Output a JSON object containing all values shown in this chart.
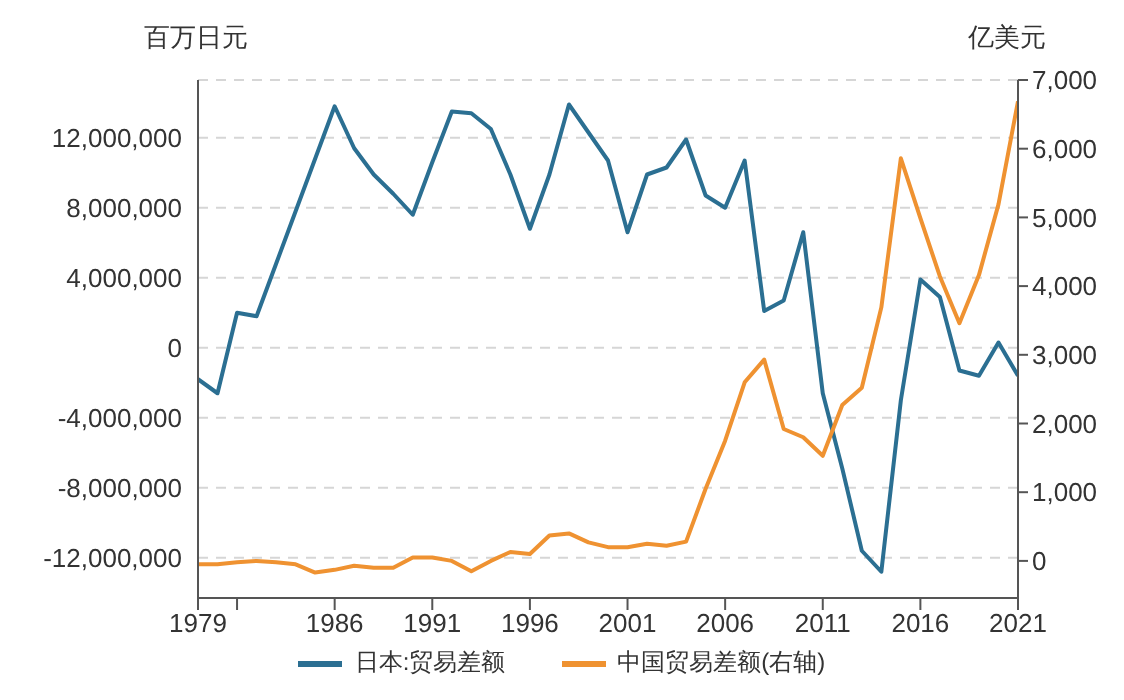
{
  "chart_data": {
    "type": "line",
    "ylabel": "百万日元",
    "y2label": "亿美元",
    "x": [
      1979,
      1980,
      1981,
      1982,
      1983,
      1984,
      1985,
      1986,
      1987,
      1988,
      1989,
      1990,
      1991,
      1992,
      1993,
      1994,
      1995,
      1996,
      1997,
      1998,
      1999,
      2000,
      2001,
      2002,
      2003,
      2004,
      2005,
      2006,
      2007,
      2008,
      2009,
      2010,
      2011,
      2012,
      2013,
      2014,
      2015,
      2016,
      2017,
      2018,
      2019,
      2020,
      2021
    ],
    "series": [
      {
        "name": "日本:贸易差额",
        "color": "#2b6f92",
        "values": [
          -1800000,
          -2600000,
          2000000,
          1800000,
          4800000,
          7800000,
          10800000,
          13800000,
          11400000,
          9900000,
          8800000,
          7600000,
          10600000,
          13500000,
          13400000,
          12500000,
          9900000,
          6800000,
          9900000,
          13900000,
          12300000,
          10700000,
          6600000,
          9900000,
          10300000,
          11900000,
          8700000,
          8000000,
          10700000,
          2100000,
          2700000,
          6600000,
          -2600000,
          -6900000,
          -11600000,
          -12800000,
          -3000000,
          3900000,
          2900000,
          -1300000,
          -1600000,
          300000,
          -1600000
        ]
      },
      {
        "name": "中国贸易差额(右轴)",
        "color": "#ef9231",
        "axis": "y2",
        "values": [
          -50,
          -50,
          -20,
          0,
          -20,
          -50,
          -170,
          -130,
          -70,
          -100,
          -100,
          50,
          50,
          0,
          -150,
          0,
          130,
          100,
          370,
          400,
          270,
          200,
          200,
          250,
          220,
          280,
          1050,
          1750,
          2600,
          2930,
          1920,
          1800,
          1530,
          2270,
          2520,
          3690,
          5860,
          4990,
          4140,
          3460,
          4160,
          5190,
          6690
        ]
      }
    ],
    "xlim": [
      1979,
      2021
    ],
    "xticks": [
      1979,
      {
        "value": 1981,
        "label": null
      },
      1986,
      1991,
      1996,
      2001,
      2006,
      2011,
      2016,
      2021
    ],
    "ylim": [
      -14300000,
      15300000
    ],
    "yticks": [
      {
        "value": -12000000,
        "label": "-12,000,000"
      },
      {
        "value": -8000000,
        "label": "-8,000,000"
      },
      {
        "value": -4000000,
        "label": "-4,000,000"
      },
      0,
      {
        "value": 4000000,
        "label": "4,000,000"
      },
      {
        "value": 8000000,
        "label": "8,000,000"
      },
      {
        "value": 12000000,
        "label": "12,000,000"
      }
    ],
    "y2lim": [
      -540,
      7000
    ],
    "y2ticks": [
      0,
      {
        "value": 1000,
        "label": "1,000"
      },
      {
        "value": 2000,
        "label": "2,000"
      },
      {
        "value": 3000,
        "label": "3,000"
      },
      {
        "value": 4000,
        "label": "4,000"
      },
      {
        "value": 5000,
        "label": "5,000"
      },
      {
        "value": 6000,
        "label": "6,000"
      },
      {
        "value": 7000,
        "label": "7,000"
      }
    ],
    "grid": "y",
    "legend": "bottom",
    "marker": "none",
    "line_style": "solid"
  }
}
